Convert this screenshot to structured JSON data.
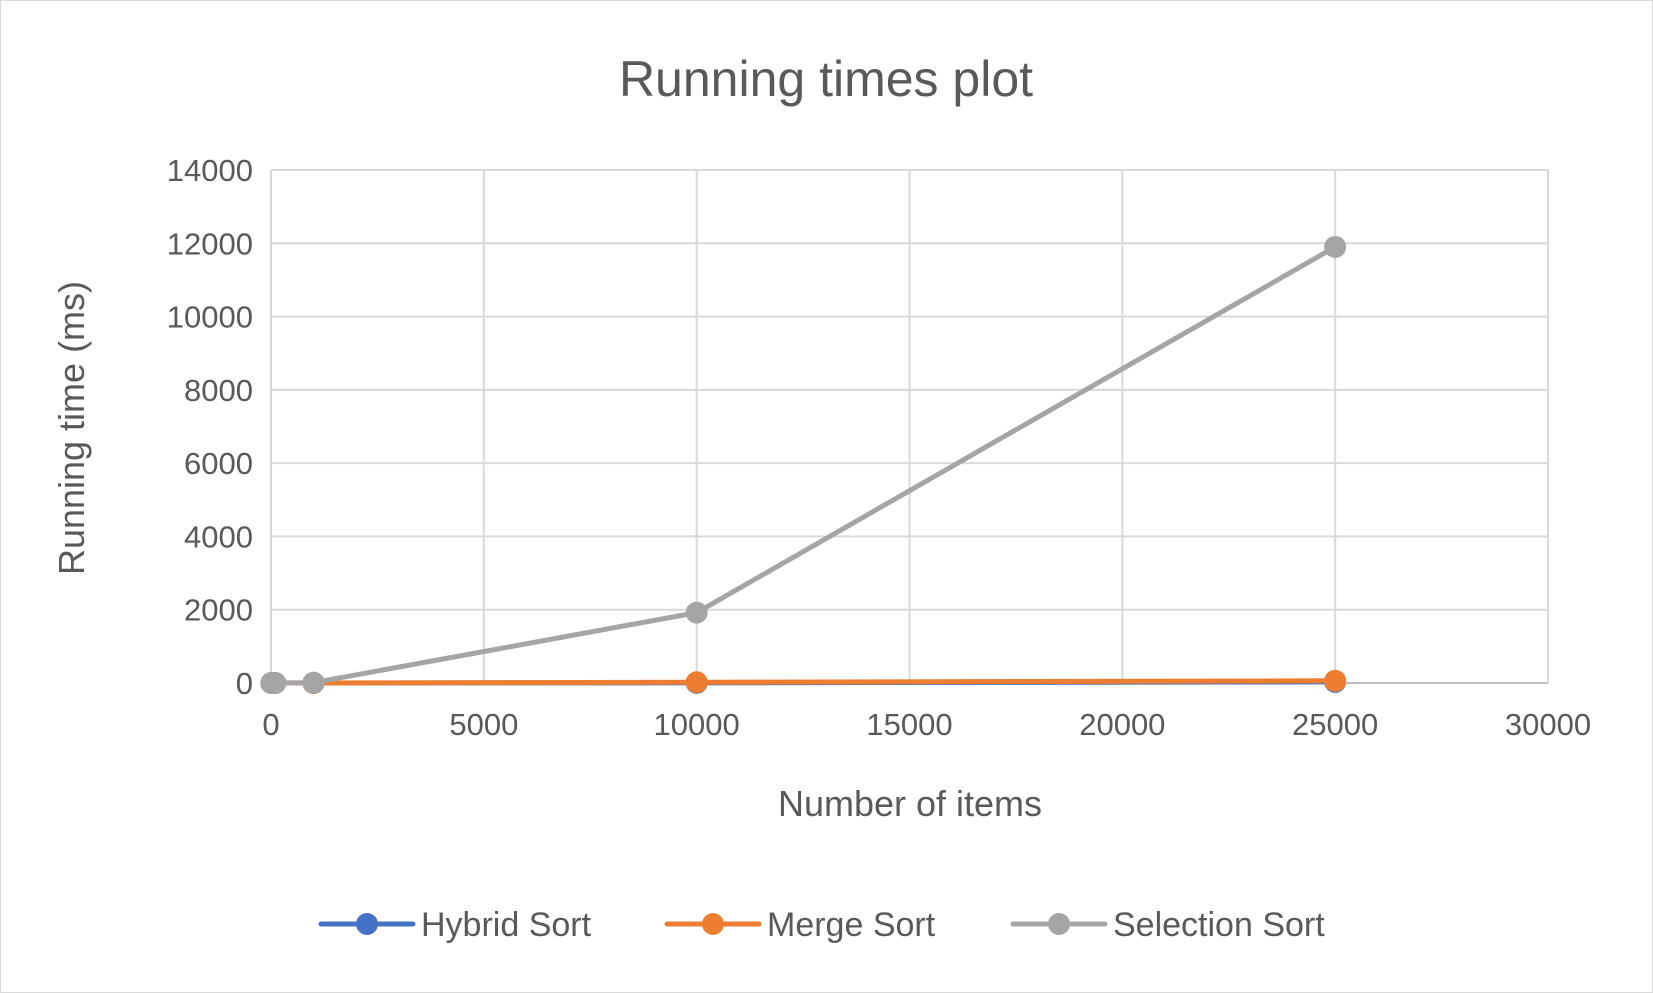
{
  "chart_data": {
    "type": "scatter",
    "title": "Running times plot",
    "xlabel": "Number of items",
    "ylabel": "Running time (ms)",
    "xlim": [
      0,
      30000
    ],
    "ylim": [
      0,
      14000
    ],
    "x_ticks": [
      "0",
      "5000",
      "10000",
      "15000",
      "20000",
      "25000",
      "30000"
    ],
    "y_ticks": [
      "0",
      "2000",
      "4000",
      "6000",
      "8000",
      "10000",
      "12000",
      "14000"
    ],
    "grid": true,
    "legend_position": "bottom",
    "series": [
      {
        "name": "Hybrid Sort",
        "color": "#4472C4",
        "x": [
          10,
          100,
          1000,
          10000,
          25000
        ],
        "y": [
          0,
          0,
          0,
          5,
          30
        ]
      },
      {
        "name": "Merge Sort",
        "color": "#ED7D31",
        "x": [
          10,
          100,
          1000,
          10000,
          25000
        ],
        "y": [
          0,
          0,
          1,
          20,
          60
        ]
      },
      {
        "name": "Selection Sort",
        "color": "#A5A5A5",
        "x": [
          10,
          100,
          1000,
          10000,
          25000
        ],
        "y": [
          0,
          0,
          10,
          1920,
          11900
        ]
      }
    ]
  }
}
